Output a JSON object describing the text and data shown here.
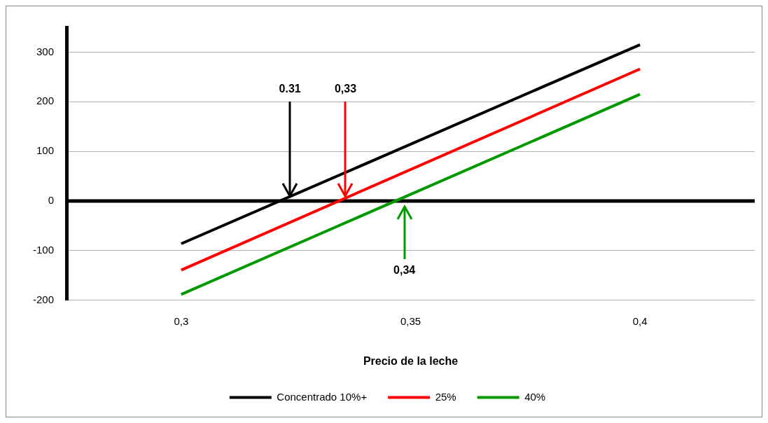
{
  "chart_data": {
    "type": "line",
    "xlabel": "Precio de la leche",
    "x": [
      0.3,
      0.4
    ],
    "series": [
      {
        "name": "Concentrado 10%+",
        "color": "#000000",
        "values": [
          -86,
          315
        ]
      },
      {
        "name": "25%",
        "color": "#ff0000",
        "values": [
          -139,
          266
        ]
      },
      {
        "name": "40%",
        "color": "#009900",
        "values": [
          -188,
          215
        ]
      }
    ],
    "xlim": [
      0.275,
      0.425
    ],
    "xticks": [
      {
        "value": 0.3,
        "label": "0,3"
      },
      {
        "value": 0.35,
        "label": "0,35"
      },
      {
        "value": 0.4,
        "label": "0,4"
      }
    ],
    "ylim": [
      -200,
      350
    ],
    "yticks": [
      -200,
      -100,
      0,
      100,
      200,
      300
    ],
    "ref_lines": [
      {
        "axis": "y",
        "value": 0,
        "color": "#000000"
      }
    ],
    "annotations": [
      {
        "text": "0.31",
        "x": 0.3237,
        "y": 10
      },
      {
        "text": "0,33",
        "x": 0.3358,
        "y": 10
      },
      "0,34"
    ],
    "grid": "y",
    "legend": "bottom",
    "marker": "none",
    "line_style": "solid"
  }
}
